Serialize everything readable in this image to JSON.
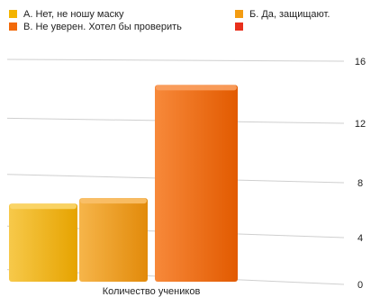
{
  "chart_data": {
    "type": "bar",
    "categories": [
      "А. Нет, не ношу маску",
      "Б. Да, защищают.",
      "В. Не уверен. Хотел бы проверить",
      ""
    ],
    "values": [
      7,
      7.4,
      15.4,
      0
    ],
    "colors": [
      "#f4b400",
      "#f39c12",
      "#f26a0a",
      "#e8301c"
    ],
    "xlabel": "Количество учеников",
    "ylabel": "",
    "yticks": [
      0,
      4,
      8,
      12,
      16
    ],
    "ylim": [
      0,
      16
    ],
    "grid": true,
    "legend": "top"
  }
}
